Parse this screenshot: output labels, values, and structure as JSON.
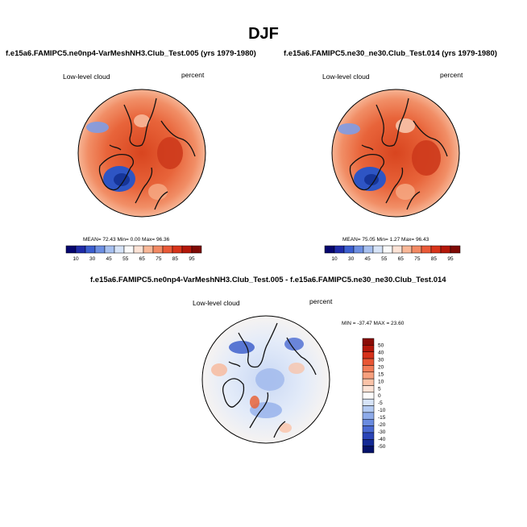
{
  "figure": {
    "title": "DJF"
  },
  "panels": [
    {
      "title": "f.e15a6.FAMIPC5.ne0np4-VarMeshNH3.Club_Test.005 (yrs 1979-1980)",
      "left_label": "Low-level cloud",
      "right_label": "percent",
      "stats": {
        "mean": "72.43",
        "min": "0.00",
        "max": "96.36"
      }
    },
    {
      "title": "f.e15a6.FAMIPC5.ne30_ne30.Club_Test.014 (yrs 1979-1980)",
      "left_label": "Low-level cloud",
      "right_label": "percent",
      "stats": {
        "mean": "75.05",
        "min": "1.27",
        "max": "96.43"
      }
    },
    {
      "title": "f.e15a6.FAMIPC5.ne0np4-VarMeshNH3.Club_Test.005 - f.e15a6.FAMIPC5.ne30_ne30.Club_Test.014",
      "left_label": "Low-level cloud",
      "right_label": "percent",
      "minmax": "MIN = -37.47 MAX =  23.60"
    }
  ],
  "labels": {
    "mean": "MEAN=",
    "min": "Min=",
    "max": "Max="
  },
  "colorbar_abs": {
    "labels": [
      "10",
      "30",
      "45",
      "55",
      "65",
      "75",
      "85",
      "95"
    ],
    "colors": [
      "#06066e",
      "#1f2ba8",
      "#3c5fd0",
      "#6d8fe2",
      "#a7c0f0",
      "#d7e4f8",
      "#fbfbfb",
      "#fde3d6",
      "#f9b898",
      "#f38a64",
      "#ea5a38",
      "#d8341a",
      "#b4170a",
      "#7f0a05"
    ]
  },
  "colorbar_diff": {
    "labels": [
      "50",
      "40",
      "30",
      "20",
      "15",
      "10",
      "5",
      "0",
      "-5",
      "-10",
      "-15",
      "-20",
      "-30",
      "-40",
      "-50"
    ],
    "colors": [
      "#8a0b05",
      "#b4170a",
      "#d6311a",
      "#e85634",
      "#f27c58",
      "#f7a07e",
      "#fbc3a8",
      "#fde3d6",
      "#fbfbfb",
      "#d7e4f8",
      "#b3caf2",
      "#8eabea",
      "#6b8ce0",
      "#4a6ad2",
      "#2b45b8",
      "#142a95",
      "#05126a"
    ]
  },
  "chart_data": [
    {
      "type": "heatmap",
      "title": "f.e15a6.FAMIPC5.ne0np4-VarMeshNH3.Club_Test.005 (yrs 1979-1980)",
      "variable": "Low-level cloud",
      "units": "percent",
      "projection": "north polar stereographic",
      "mean": 72.43,
      "min": 0.0,
      "max": 96.36,
      "levels": [
        10,
        30,
        45,
        55,
        65,
        75,
        85,
        95
      ]
    },
    {
      "type": "heatmap",
      "title": "f.e15a6.FAMIPC5.ne30_ne30.Club_Test.014 (yrs 1979-1980)",
      "variable": "Low-level cloud",
      "units": "percent",
      "projection": "north polar stereographic",
      "mean": 75.05,
      "min": 1.27,
      "max": 96.43,
      "levels": [
        10,
        30,
        45,
        55,
        65,
        75,
        85,
        95
      ]
    },
    {
      "type": "heatmap",
      "title": "f.e15a6.FAMIPC5.ne0np4-VarMeshNH3.Club_Test.005 - f.e15a6.FAMIPC5.ne30_ne30.Club_Test.014",
      "variable": "Low-level cloud",
      "units": "percent",
      "projection": "north polar stereographic",
      "min": -37.47,
      "max": 23.6,
      "levels": [
        -50,
        -40,
        -30,
        -20,
        -15,
        -10,
        -5,
        0,
        5,
        10,
        15,
        20,
        30,
        40,
        50
      ]
    }
  ]
}
